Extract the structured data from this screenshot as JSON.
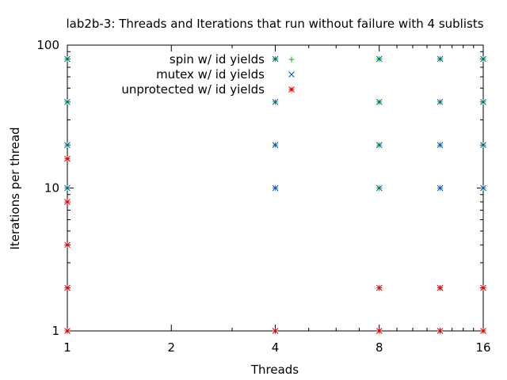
{
  "chart_data": {
    "type": "scatter",
    "title": "lab2b-3: Threads and Iterations that run without failure with 4 sublists",
    "xlabel": "Threads",
    "ylabel": "Iterations per thread",
    "x_scale": "log2",
    "y_scale": "log10",
    "xlim": [
      1,
      16
    ],
    "ylim": [
      1,
      100
    ],
    "xticks": [
      1,
      2,
      4,
      8,
      16
    ],
    "yticks": [
      1,
      10,
      100
    ],
    "grid": false,
    "legend_position": "top-center",
    "series": [
      {
        "name": "spin w/ id yields",
        "color": "#00c000",
        "marker": "plus",
        "points": [
          [
            1,
            10
          ],
          [
            1,
            20
          ],
          [
            1,
            40
          ],
          [
            1,
            80
          ],
          [
            4,
            10
          ],
          [
            4,
            20
          ],
          [
            4,
            40
          ],
          [
            4,
            80
          ],
          [
            8,
            10
          ],
          [
            8,
            20
          ],
          [
            8,
            40
          ],
          [
            8,
            80
          ],
          [
            12,
            10
          ],
          [
            12,
            20
          ],
          [
            12,
            40
          ],
          [
            12,
            80
          ],
          [
            16,
            10
          ],
          [
            16,
            20
          ],
          [
            16,
            40
          ],
          [
            16,
            80
          ]
        ]
      },
      {
        "name": "mutex w/ id yields",
        "color": "#0050c8",
        "marker": "cross",
        "points": [
          [
            1,
            10
          ],
          [
            1,
            20
          ],
          [
            1,
            40
          ],
          [
            1,
            80
          ],
          [
            4,
            10
          ],
          [
            4,
            20
          ],
          [
            4,
            40
          ],
          [
            4,
            80
          ],
          [
            8,
            10
          ],
          [
            8,
            20
          ],
          [
            8,
            40
          ],
          [
            8,
            80
          ],
          [
            12,
            10
          ],
          [
            12,
            20
          ],
          [
            12,
            40
          ],
          [
            12,
            80
          ],
          [
            16,
            10
          ],
          [
            16,
            20
          ],
          [
            16,
            40
          ],
          [
            16,
            80
          ]
        ]
      },
      {
        "name": "unprotected w/ id yields",
        "color": "#e00000",
        "marker": "star",
        "points": [
          [
            1,
            1
          ],
          [
            1,
            2
          ],
          [
            1,
            4
          ],
          [
            1,
            8
          ],
          [
            1,
            16
          ],
          [
            4,
            1
          ],
          [
            8,
            1
          ],
          [
            8,
            2
          ],
          [
            12,
            1
          ],
          [
            12,
            2
          ],
          [
            16,
            1
          ],
          [
            16,
            2
          ]
        ]
      }
    ]
  }
}
